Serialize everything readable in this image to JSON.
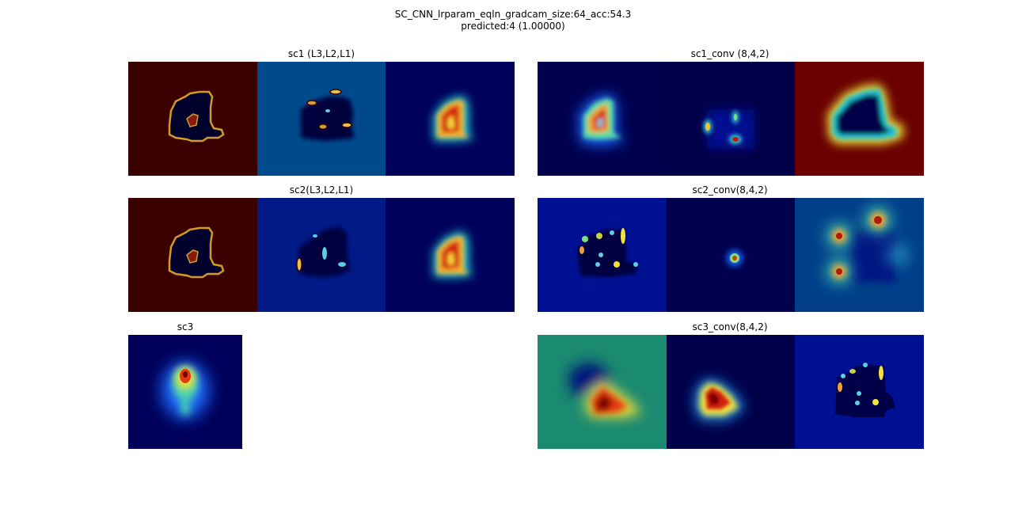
{
  "figure": {
    "title_line1": "SC_CNN_lrparam_eqln_gradcam_size:64_acc:54.3",
    "title_line2": "predicted:4 (1.00000)"
  },
  "panels": {
    "sc1": {
      "title": "sc1 (L3,L2,L1)"
    },
    "sc1_conv": {
      "title": "sc1_conv (8,4,2)"
    },
    "sc2": {
      "title": "sc2(L3,L2,L1)"
    },
    "sc2_conv": {
      "title": "sc2_conv(8,4,2)"
    },
    "sc3": {
      "title": "sc3"
    },
    "sc3_conv": {
      "title": "sc3_conv(8,4,2)"
    }
  },
  "colormap": {
    "name": "jet",
    "dark_blue": "#00005f",
    "blue": "#0016a0",
    "cyan": "#29d2e0",
    "green": "#7ee07a",
    "yellow": "#f2e23a",
    "orange": "#f07b1a",
    "red": "#c51a0a",
    "dark_red": "#3a0000"
  }
}
